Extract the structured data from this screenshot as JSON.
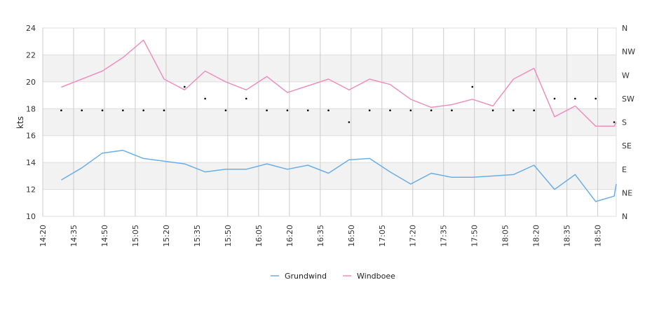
{
  "chart_data": {
    "type": "line",
    "ylabel": "kts",
    "ylim": [
      10,
      24
    ],
    "yticks": [
      10,
      12,
      14,
      16,
      18,
      20,
      22,
      24
    ],
    "y2ticks": [
      "N",
      "NE",
      "E",
      "SE",
      "S",
      "SW",
      "W",
      "NW",
      "N"
    ],
    "x_range": [
      "14:20",
      "18:59"
    ],
    "xticks": [
      "14:20",
      "14:35",
      "14:50",
      "15:05",
      "15:20",
      "15:35",
      "15:50",
      "16:05",
      "16:20",
      "16:35",
      "16:50",
      "17:05",
      "17:20",
      "17:35",
      "17:50",
      "18:05",
      "18:20",
      "18:35",
      "18:50"
    ],
    "grid": true,
    "legend_position": "bottom",
    "series": [
      {
        "name": "Grundwind",
        "color": "#6aaee8",
        "points": [
          [
            "14:29",
            12.7
          ],
          [
            "14:39",
            13.6
          ],
          [
            "14:49",
            14.7
          ],
          [
            "14:59",
            14.9
          ],
          [
            "15:09",
            14.3
          ],
          [
            "15:19",
            14.1
          ],
          [
            "15:29",
            13.9
          ],
          [
            "15:39",
            13.3
          ],
          [
            "15:49",
            13.5
          ],
          [
            "15:59",
            13.5
          ],
          [
            "16:09",
            13.9
          ],
          [
            "16:19",
            13.5
          ],
          [
            "16:29",
            13.8
          ],
          [
            "16:39",
            13.2
          ],
          [
            "16:49",
            14.2
          ],
          [
            "16:59",
            14.3
          ],
          [
            "17:09",
            13.3
          ],
          [
            "17:19",
            12.4
          ],
          [
            "17:29",
            13.2
          ],
          [
            "17:39",
            12.9
          ],
          [
            "17:49",
            12.9
          ],
          [
            "17:59",
            13.0
          ],
          [
            "18:09",
            13.1
          ],
          [
            "18:19",
            13.8
          ],
          [
            "18:29",
            12.0
          ],
          [
            "18:39",
            13.1
          ],
          [
            "18:49",
            11.1
          ],
          [
            "18:58",
            11.5
          ],
          [
            "18:59",
            12.4
          ]
        ]
      },
      {
        "name": "Windboee",
        "color": "#ee8fbf",
        "points": [
          [
            "14:29",
            19.6
          ],
          [
            "14:39",
            20.2
          ],
          [
            "14:49",
            20.8
          ],
          [
            "14:59",
            21.8
          ],
          [
            "15:09",
            23.1
          ],
          [
            "15:19",
            20.2
          ],
          [
            "15:29",
            19.4
          ],
          [
            "15:39",
            20.8
          ],
          [
            "15:49",
            20.0
          ],
          [
            "15:59",
            19.4
          ],
          [
            "16:09",
            20.4
          ],
          [
            "16:19",
            19.2
          ],
          [
            "16:29",
            19.7
          ],
          [
            "16:39",
            20.2
          ],
          [
            "16:49",
            19.4
          ],
          [
            "16:59",
            20.2
          ],
          [
            "17:09",
            19.8
          ],
          [
            "17:19",
            18.7
          ],
          [
            "17:29",
            18.1
          ],
          [
            "17:39",
            18.3
          ],
          [
            "17:49",
            18.7
          ],
          [
            "17:59",
            18.2
          ],
          [
            "18:09",
            20.2
          ],
          [
            "18:19",
            21.0
          ],
          [
            "18:29",
            17.4
          ],
          [
            "18:39",
            18.2
          ],
          [
            "18:49",
            16.7
          ],
          [
            "18:58",
            16.7
          ],
          [
            "18:59",
            17.0
          ]
        ]
      }
    ],
    "direction_points": [
      [
        "14:29",
        "SSW"
      ],
      [
        "14:39",
        "SSW"
      ],
      [
        "14:49",
        "SSW"
      ],
      [
        "14:59",
        "SSW"
      ],
      [
        "15:09",
        "SSW"
      ],
      [
        "15:19",
        "SSW"
      ],
      [
        "15:29",
        "WSW"
      ],
      [
        "15:39",
        "SW"
      ],
      [
        "15:49",
        "SSW"
      ],
      [
        "15:59",
        "SW"
      ],
      [
        "16:09",
        "SSW"
      ],
      [
        "16:19",
        "SSW"
      ],
      [
        "16:29",
        "SSW"
      ],
      [
        "16:39",
        "SSW"
      ],
      [
        "16:49",
        "S"
      ],
      [
        "16:59",
        "SSW"
      ],
      [
        "17:09",
        "SSW"
      ],
      [
        "17:19",
        "SSW"
      ],
      [
        "17:29",
        "SSW"
      ],
      [
        "17:39",
        "SSW"
      ],
      [
        "17:49",
        "WSW"
      ],
      [
        "17:59",
        "SSW"
      ],
      [
        "18:09",
        "SSW"
      ],
      [
        "18:19",
        "SSW"
      ],
      [
        "18:29",
        "SW"
      ],
      [
        "18:39",
        "SW"
      ],
      [
        "18:49",
        "SW"
      ],
      [
        "18:58",
        "S"
      ]
    ]
  }
}
